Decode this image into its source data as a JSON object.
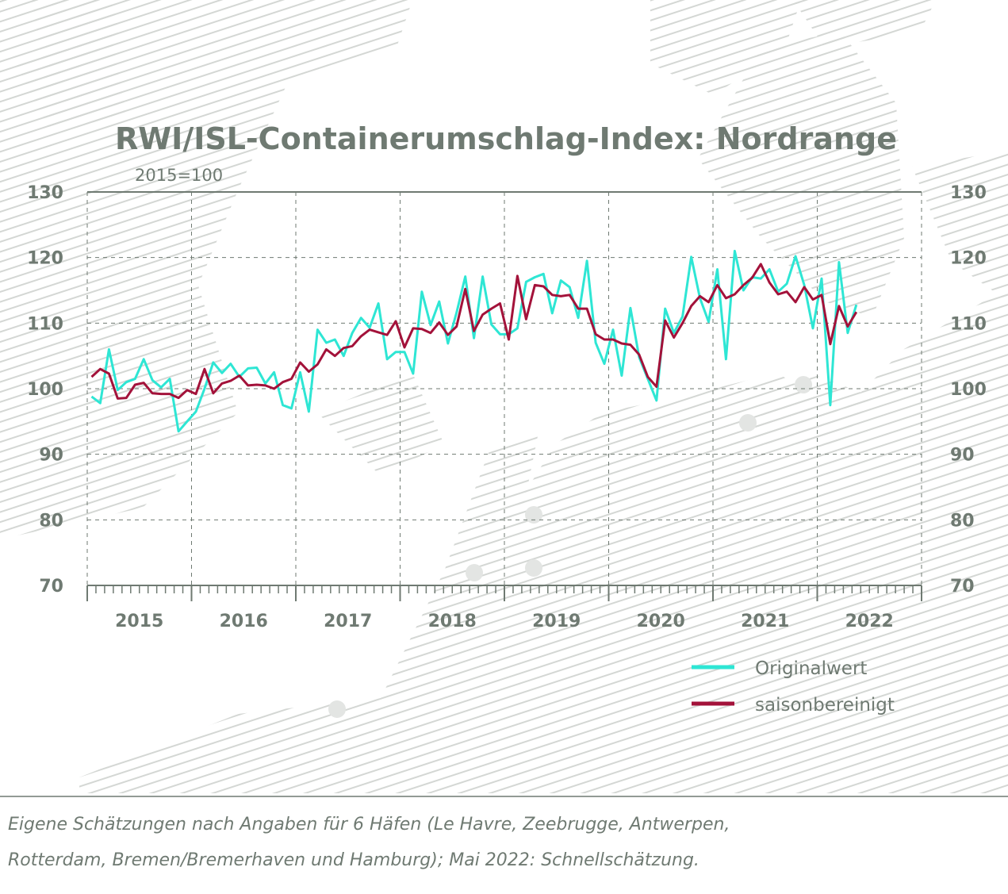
{
  "chart_data": {
    "type": "line",
    "title": "RWI/ISL-Containerumschlag-Index: Nordrange",
    "subtitle": "2015=100",
    "ylim": [
      70,
      130
    ],
    "yticks": [
      "130",
      "120",
      "110",
      "100",
      "90",
      "80",
      "70"
    ],
    "xlim": [
      "2015-01",
      "2022-12"
    ],
    "year_labels": [
      "2015",
      "2016",
      "2017",
      "2018",
      "2019",
      "2020",
      "2021",
      "2022"
    ],
    "grid": true,
    "legend_position": "bottom-right",
    "colors": {
      "original": "#2ee6d4",
      "adjusted": "#a3123a",
      "grid": "#6f7a72",
      "text": "#6f7a72",
      "background_pattern": "#d4d7d4"
    },
    "series": [
      {
        "name": "Originalwert",
        "x_start": "2015-01",
        "values": [
          98.8,
          97.8,
          106.0,
          99.8,
          101.0,
          101.5,
          104.5,
          101.3,
          100.2,
          101.5,
          93.5,
          95.0,
          96.5,
          100.0,
          104.0,
          102.4,
          103.8,
          101.8,
          103.1,
          103.2,
          100.8,
          102.5,
          97.5,
          97.0,
          102.5,
          96.5,
          109.0,
          107.0,
          107.5,
          105.0,
          108.5,
          110.8,
          109.3,
          113.0,
          104.5,
          105.6,
          105.6,
          102.3,
          114.8,
          109.7,
          113.3,
          106.9,
          111.6,
          117.1,
          107.7,
          117.1,
          109.8,
          108.3,
          108.3,
          109.2,
          116.3,
          117.0,
          117.5,
          111.5,
          116.5,
          115.5,
          110.8,
          119.5,
          107.0,
          103.8,
          109.0,
          102.0,
          112.3,
          104.8,
          101.5,
          98.2,
          112.2,
          108.5,
          111.0,
          120.1,
          113.8,
          110.2,
          118.2,
          104.5,
          121.0,
          115.0,
          117.0,
          116.8,
          118.2,
          114.8,
          116.0,
          120.2,
          115.8,
          109.2,
          116.8,
          97.5,
          119.3,
          108.5,
          112.8
        ]
      },
      {
        "name": "saisonbereinigt",
        "x_start": "2015-01",
        "values": [
          101.8,
          103.0,
          102.3,
          98.5,
          98.6,
          100.6,
          100.9,
          99.3,
          99.2,
          99.2,
          98.6,
          99.8,
          99.2,
          103.0,
          99.3,
          100.8,
          101.2,
          102.0,
          100.5,
          100.6,
          100.5,
          100.0,
          101.0,
          101.5,
          104.0,
          102.6,
          103.7,
          106.0,
          105.0,
          106.2,
          106.5,
          108.0,
          109.0,
          108.6,
          108.2,
          110.3,
          106.3,
          109.2,
          109.1,
          108.5,
          110.1,
          108.2,
          109.5,
          115.2,
          108.8,
          111.3,
          112.2,
          113.0,
          107.5,
          117.2,
          110.6,
          115.8,
          115.6,
          114.3,
          114.1,
          114.3,
          112.2,
          112.2,
          108.3,
          107.5,
          107.5,
          106.9,
          106.7,
          105.2,
          101.8,
          100.3,
          110.4,
          107.8,
          110.0,
          112.6,
          114.1,
          113.2,
          115.8,
          113.8,
          114.4,
          115.8,
          116.9,
          119.0,
          116.2,
          114.4,
          114.8,
          113.2,
          115.5,
          113.6,
          114.3,
          106.8,
          112.6,
          109.5,
          111.7
        ]
      }
    ],
    "footnote_lines": [
      "Eigene Schätzungen nach Angaben für 6 Häfen (Le Havre, Zeebrugge, Antwerpen,",
      "Rotterdam, Bremen/Bremerhaven und Hamburg); Mai 2022: Schnellschätzung."
    ]
  }
}
